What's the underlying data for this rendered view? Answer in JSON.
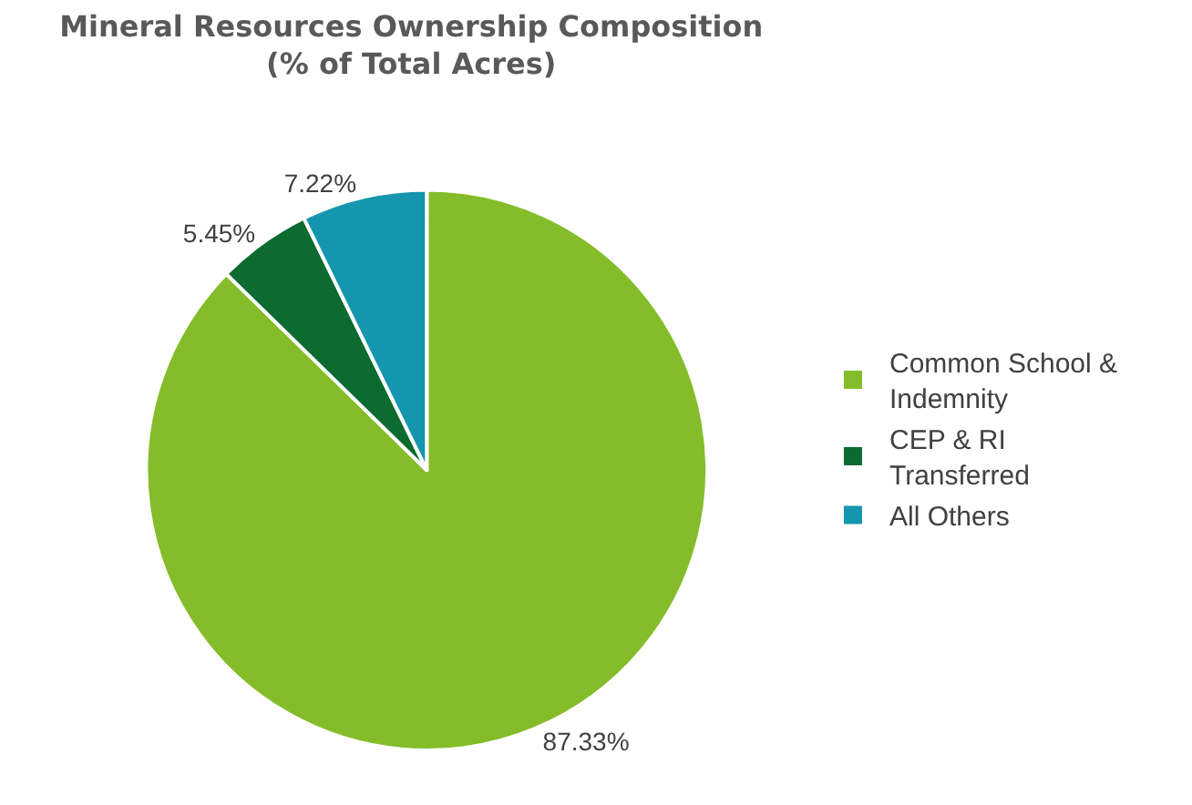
{
  "chart_data": {
    "type": "pie",
    "title": "Mineral Resources Ownership Composition\n(% of Total Acres)",
    "categories": [
      "Common School & Indemnity",
      "CEP & RI Transferred",
      "All Others"
    ],
    "values": [
      87.33,
      5.45,
      7.22
    ],
    "value_labels": [
      "87.33%",
      "5.45%",
      "7.22%"
    ],
    "colors": [
      "#84bd29",
      "#0b6b30",
      "#1596ae"
    ],
    "legend": "right"
  }
}
